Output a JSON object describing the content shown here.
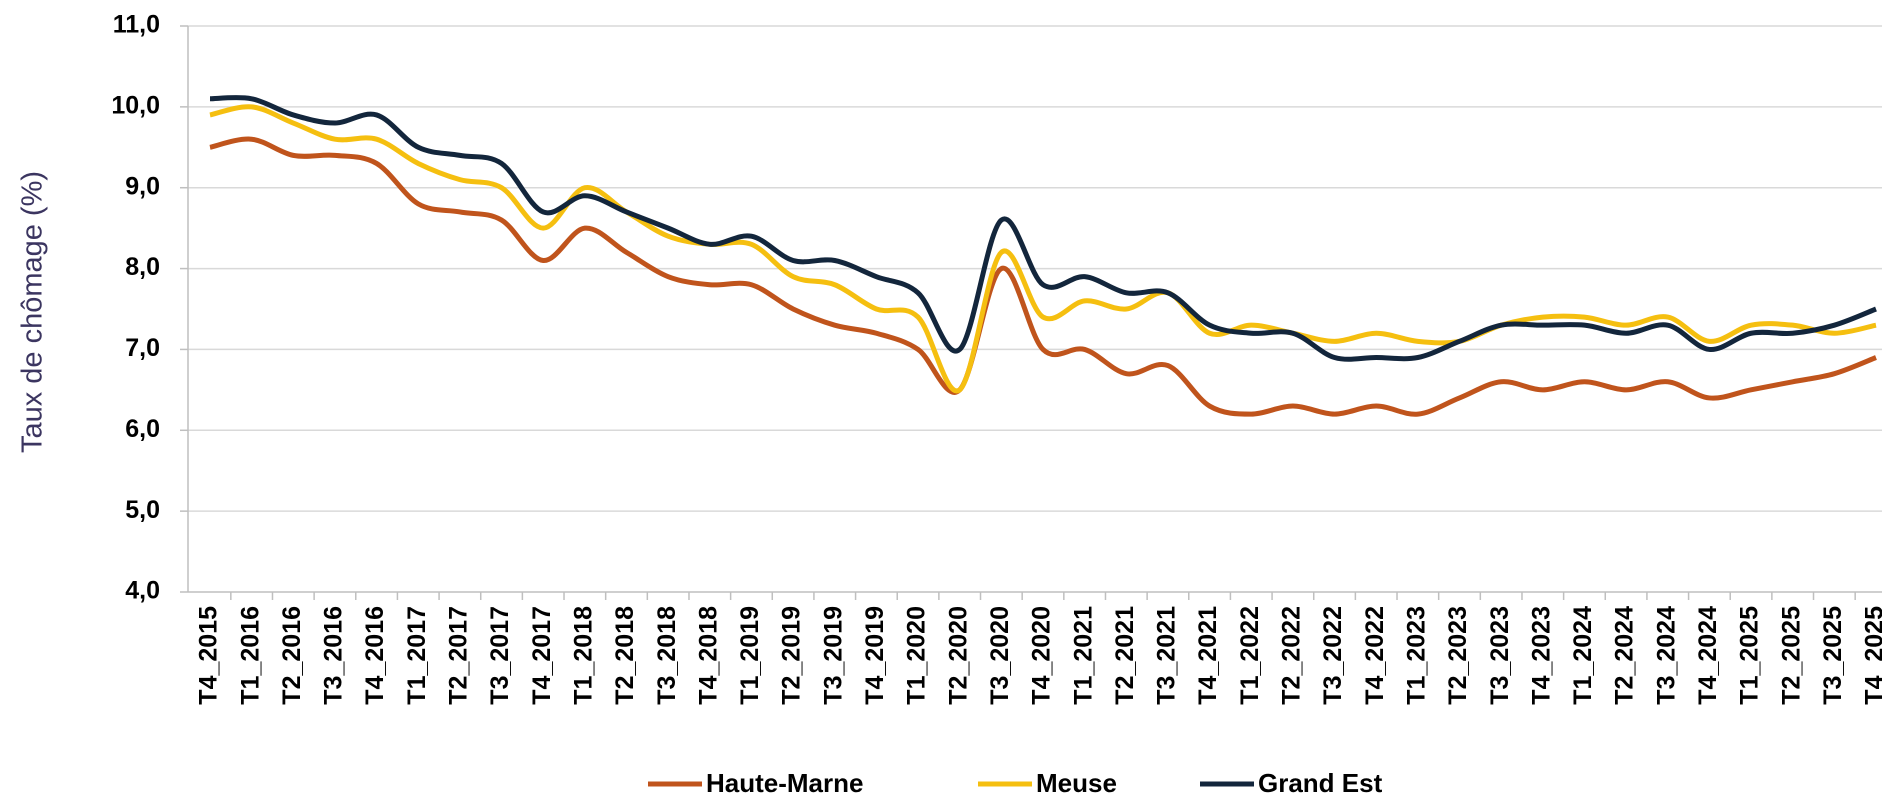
{
  "chart_data": {
    "type": "line",
    "y_label": "Taux de chômage (%)",
    "categories": [
      "T4_2015",
      "T1_2016",
      "T2_2016",
      "T3_2016",
      "T4_2016",
      "T1_2017",
      "T2_2017",
      "T3_2017",
      "T4_2017",
      "T1_2018",
      "T2_2018",
      "T3_2018",
      "T4_2018",
      "T1_2019",
      "T2_2019",
      "T3_2019",
      "T4_2019",
      "T1_2020",
      "T2_2020",
      "T3_2020",
      "T4_2020",
      "T1_2021",
      "T2_2021",
      "T3_2021",
      "T4_2021",
      "T1_2022",
      "T2_2022",
      "T3_2022",
      "T4_2022",
      "T1_2023",
      "T2_2023",
      "T3_2023",
      "T4_2023",
      "T1_2024",
      "T2_2024",
      "T3_2024",
      "T4_2024",
      "T1_2025",
      "T2_2025",
      "T3_2025",
      "T4_2025"
    ],
    "series": [
      {
        "name": "Haute-Marne",
        "color": "#c0541c",
        "values": [
          9.5,
          9.6,
          9.4,
          9.4,
          9.3,
          8.8,
          8.7,
          8.6,
          8.1,
          8.5,
          8.2,
          7.9,
          7.8,
          7.8,
          7.5,
          7.3,
          7.2,
          7.0,
          6.5,
          8.0,
          7.0,
          7.0,
          6.7,
          6.8,
          6.3,
          6.2,
          6.3,
          6.2,
          6.3,
          6.2,
          6.4,
          6.6,
          6.5,
          6.6,
          6.5,
          6.6,
          6.4,
          6.5,
          6.6,
          6.7,
          6.9
        ]
      },
      {
        "name": "Meuse",
        "color": "#f5bf10",
        "values": [
          9.9,
          10.0,
          9.8,
          9.6,
          9.6,
          9.3,
          9.1,
          9.0,
          8.5,
          9.0,
          8.7,
          8.4,
          8.3,
          8.3,
          7.9,
          7.8,
          7.5,
          7.4,
          6.5,
          8.2,
          7.4,
          7.6,
          7.5,
          7.7,
          7.2,
          7.3,
          7.2,
          7.1,
          7.2,
          7.1,
          7.1,
          7.3,
          7.4,
          7.4,
          7.3,
          7.4,
          7.1,
          7.3,
          7.3,
          7.2,
          7.3
        ]
      },
      {
        "name": "Grand Est",
        "color": "#13263c",
        "values": [
          10.1,
          10.1,
          9.9,
          9.8,
          9.9,
          9.5,
          9.4,
          9.3,
          8.7,
          8.9,
          8.7,
          8.5,
          8.3,
          8.4,
          8.1,
          8.1,
          7.9,
          7.7,
          7.0,
          8.6,
          7.8,
          7.9,
          7.7,
          7.7,
          7.3,
          7.2,
          7.2,
          6.9,
          6.9,
          6.9,
          7.1,
          7.3,
          7.3,
          7.3,
          7.2,
          7.3,
          7.0,
          7.2,
          7.2,
          7.3,
          7.5
        ]
      }
    ],
    "ylim": [
      4,
      11
    ],
    "yticks": [
      {
        "value": 4,
        "label": "4,0"
      },
      {
        "value": 5,
        "label": "5,0"
      },
      {
        "value": 6,
        "label": "6,0"
      },
      {
        "value": 7,
        "label": "7,0"
      },
      {
        "value": 8,
        "label": "8,0"
      },
      {
        "value": 9,
        "label": "9,0"
      },
      {
        "value": 10,
        "label": "10,0"
      },
      {
        "value": 11,
        "label": "11,0"
      }
    ],
    "grid": true
  }
}
